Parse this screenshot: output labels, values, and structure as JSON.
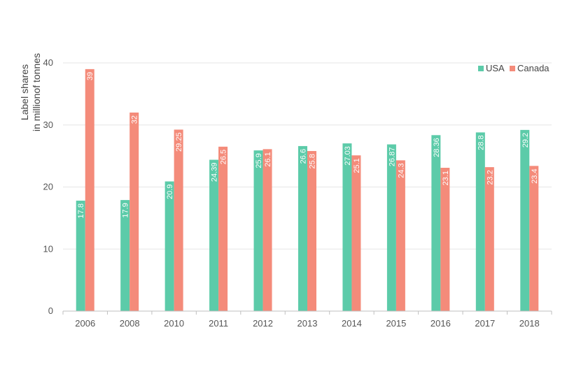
{
  "chart_data": {
    "type": "bar",
    "categories": [
      "2006",
      "2008",
      "2010",
      "2011",
      "2012",
      "2013",
      "2014",
      "2015",
      "2016",
      "2017",
      "2018"
    ],
    "series": [
      {
        "name": "USA",
        "color": "#5ccba9",
        "values": [
          17.8,
          17.9,
          20.9,
          24.39,
          25.9,
          26.6,
          27.03,
          26.87,
          28.36,
          28.8,
          29.2
        ],
        "labels": [
          "17.8",
          "17.9",
          "20.9",
          "24.39",
          "25.9",
          "26.6",
          "27.03",
          "26.87",
          "28.36",
          "28.8",
          "29.2"
        ]
      },
      {
        "name": "Canada",
        "color": "#f48b7a",
        "values": [
          39,
          32,
          29.25,
          26.5,
          26.1,
          25.8,
          25.1,
          24.3,
          23.1,
          23.2,
          23.4
        ],
        "labels": [
          "39",
          "32",
          "29.25",
          "26.5",
          "26.1",
          "25.8",
          "25.1",
          "24.3",
          "23.1",
          "23.2",
          "23.4"
        ]
      }
    ],
    "ylabel_lines": [
      "Label shares",
      "in millionof tonnes"
    ],
    "ylim": [
      0,
      40
    ],
    "yticks": [
      "0",
      "10",
      "20",
      "30",
      "40"
    ],
    "grid": true,
    "legend_position": "top-right"
  }
}
